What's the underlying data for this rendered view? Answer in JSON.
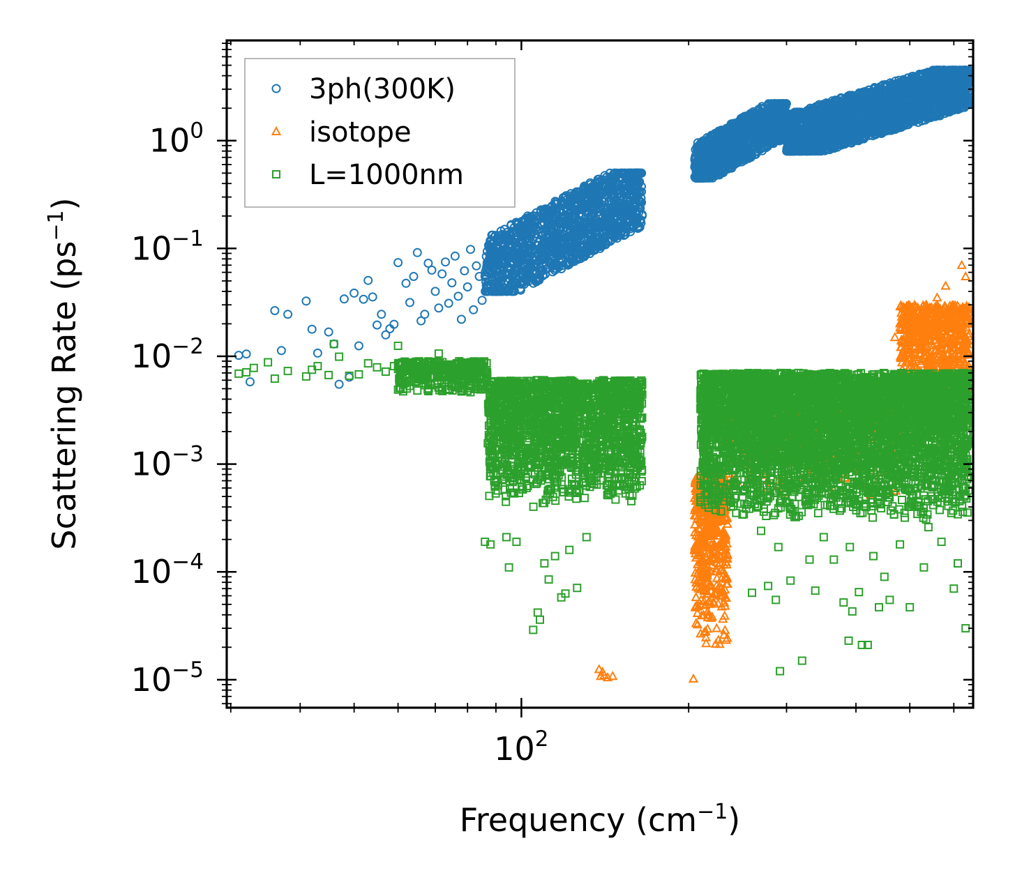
{
  "chart_data": {
    "type": "scatter",
    "title": "",
    "xlabel": {
      "base": "Frequency (cm",
      "sup": "−1",
      "tail": ")"
    },
    "ylabel": {
      "base": "Scattering Rate (ps",
      "sup": "−1",
      "tail": ")"
    },
    "xscale": "log",
    "yscale": "log",
    "xlim": [
      29.5,
      650
    ],
    "ylim": [
      5.5e-06,
      8.5
    ],
    "x_tick_labels": [
      {
        "value": 100,
        "base": "10",
        "exp": "2"
      }
    ],
    "y_tick_labels": [
      {
        "value": 1,
        "base": "10",
        "exp": "0"
      },
      {
        "value": 0.1,
        "base": "10",
        "exp": "−1"
      },
      {
        "value": 0.01,
        "base": "10",
        "exp": "−2"
      },
      {
        "value": 0.001,
        "base": "10",
        "exp": "−3"
      },
      {
        "value": 0.0001,
        "base": "10",
        "exp": "−4"
      },
      {
        "value": 1e-05,
        "base": "10",
        "exp": "−5"
      }
    ],
    "legend_position": "top-left",
    "series": [
      {
        "name": "3ph(300K)",
        "marker": "circle",
        "color": "#1f77b4",
        "bands": [
          {
            "x": [
              86,
              165
            ],
            "y": [
              0.04,
              0.5
            ],
            "n": 1400
          },
          {
            "x": [
              205,
              300
            ],
            "y": [
              0.45,
              2.2
            ],
            "n": 1100
          },
          {
            "x": [
              300,
              640
            ],
            "y": [
              0.8,
              4.5
            ],
            "n": 2200
          }
        ],
        "values": [
          [
            31,
            0.0102
          ],
          [
            32,
            0.0105
          ],
          [
            32.5,
            0.0058
          ],
          [
            36,
            0.0265
          ],
          [
            37,
            0.0113
          ],
          [
            38,
            0.0245
          ],
          [
            41,
            0.0325
          ],
          [
            42,
            0.0178
          ],
          [
            43,
            0.0107
          ],
          [
            45,
            0.0168
          ],
          [
            46,
            0.013
          ],
          [
            47,
            0.0055
          ],
          [
            48,
            0.034
          ],
          [
            49,
            0.0064
          ],
          [
            50,
            0.0385
          ],
          [
            51,
            0.0125
          ],
          [
            52,
            0.0338
          ],
          [
            53,
            0.0505
          ],
          [
            54,
            0.0355
          ],
          [
            55,
            0.0195
          ],
          [
            56,
            0.0245
          ],
          [
            57,
            0.0158
          ],
          [
            58,
            0.018
          ],
          [
            59,
            0.0198
          ],
          [
            60,
            0.074
          ],
          [
            62,
            0.0475
          ],
          [
            63,
            0.0315
          ],
          [
            64,
            0.055
          ],
          [
            65,
            0.0915
          ],
          [
            66,
            0.0213
          ],
          [
            67,
            0.0245
          ],
          [
            68,
            0.073
          ],
          [
            69,
            0.063
          ],
          [
            70,
            0.04
          ],
          [
            71,
            0.028
          ],
          [
            72,
            0.058
          ],
          [
            73,
            0.075
          ],
          [
            74,
            0.031
          ],
          [
            75,
            0.048
          ],
          [
            76,
            0.085
          ],
          [
            77,
            0.036
          ],
          [
            78,
            0.022
          ],
          [
            79,
            0.062
          ],
          [
            80,
            0.044
          ],
          [
            81,
            0.098
          ],
          [
            82,
            0.027
          ],
          [
            83,
            0.069
          ],
          [
            84,
            0.055
          ],
          [
            85,
            0.033
          ]
        ]
      },
      {
        "name": "isotope",
        "marker": "triangle",
        "color": "#ff7f0e",
        "bands": [
          {
            "x": [
              205,
              235
            ],
            "y": [
              2e-05,
              0.0008
            ],
            "n": 500
          },
          {
            "x": [
              235,
              480
            ],
            "y": [
              0.0005,
              0.004
            ],
            "n": 400
          },
          {
            "x": [
              480,
              640
            ],
            "y": [
              0.003,
              0.03
            ],
            "n": 700
          }
        ],
        "values": [
          [
            138,
            1.25e-05
          ],
          [
            139,
            1.08e-05
          ],
          [
            140,
            1.18e-05
          ],
          [
            141,
            1.1e-05
          ],
          [
            143,
            1.05e-05
          ],
          [
            146,
            1.08e-05
          ],
          [
            204,
            1.02e-05
          ],
          [
            470,
            0.015
          ],
          [
            500,
            0.0185
          ],
          [
            530,
            0.025
          ],
          [
            580,
            0.045
          ],
          [
            620,
            0.07
          ],
          [
            630,
            0.055
          ],
          [
            560,
            0.035
          ]
        ]
      },
      {
        "name": "L=1000nm",
        "marker": "square",
        "color": "#2ca02c",
        "bands": [
          {
            "x": [
              60,
              87
            ],
            "y": [
              0.0045,
              0.009
            ],
            "n": 350
          },
          {
            "x": [
              87,
              165
            ],
            "y": [
              0.0004,
              0.006
            ],
            "n": 1800
          },
          {
            "x": [
              210,
              640
            ],
            "y": [
              0.0003,
              0.007
            ],
            "n": 4500
          }
        ],
        "values": [
          [
            31,
            0.0069
          ],
          [
            32,
            0.0071
          ],
          [
            33,
            0.0078
          ],
          [
            35,
            0.0088
          ],
          [
            36,
            0.0062
          ],
          [
            38,
            0.0073
          ],
          [
            41,
            0.0065
          ],
          [
            42,
            0.0075
          ],
          [
            43,
            0.0081
          ],
          [
            45,
            0.0067
          ],
          [
            46,
            0.013
          ],
          [
            47,
            0.0099
          ],
          [
            49,
            0.0066
          ],
          [
            51,
            0.0068
          ],
          [
            53,
            0.0086
          ],
          [
            55,
            0.0079
          ],
          [
            57,
            0.0072
          ],
          [
            59,
            0.0081
          ],
          [
            60,
            0.0125
          ],
          [
            62,
            0.0073
          ],
          [
            65,
            0.0069
          ],
          [
            68,
            0.0088
          ],
          [
            71,
            0.0106
          ],
          [
            75,
            0.0068
          ],
          [
            79,
            0.0071
          ],
          [
            84,
            0.0066
          ],
          [
            86,
            0.00019
          ],
          [
            88,
            0.00018
          ],
          [
            94,
            0.00021
          ],
          [
            95,
            0.00011
          ],
          [
            98,
            0.00019
          ],
          [
            105,
            2.9e-05
          ],
          [
            107,
            4.2e-05
          ],
          [
            108,
            3.6e-05
          ],
          [
            110,
            0.00012
          ],
          [
            112,
            8.5e-05
          ],
          [
            115,
            0.00014
          ],
          [
            118,
            5.8e-05
          ],
          [
            120,
            6.3e-05
          ],
          [
            122,
            0.00016
          ],
          [
            126,
            7.1e-05
          ],
          [
            131,
            0.00021
          ],
          [
            210,
            0.00049
          ],
          [
            260,
            6.4e-05
          ],
          [
            278,
            7.4e-05
          ],
          [
            287,
            5.5e-05
          ],
          [
            292,
            1.2e-05
          ],
          [
            305,
            8.3e-05
          ],
          [
            320,
            1.5e-05
          ],
          [
            338,
            6.7e-05
          ],
          [
            365,
            0.00013
          ],
          [
            380,
            5.2e-05
          ],
          [
            388,
            2.3e-05
          ],
          [
            394,
            4.3e-05
          ],
          [
            405,
            6.5e-05
          ],
          [
            410,
            2.1e-05
          ],
          [
            420,
            2.1e-05
          ],
          [
            440,
            4.7e-05
          ],
          [
            460,
            5.5e-05
          ],
          [
            500,
            4.7e-05
          ],
          [
            530,
            0.00011
          ],
          [
            600,
            7e-05
          ],
          [
            630,
            3e-05
          ],
          [
            610,
            0.00012
          ],
          [
            570,
            0.00019
          ],
          [
            540,
            0.00026
          ],
          [
            480,
            0.00018
          ],
          [
            450,
            9e-05
          ],
          [
            430,
            0.00014
          ],
          [
            390,
            0.00017
          ],
          [
            350,
            0.00021
          ],
          [
            330,
            0.00013
          ],
          [
            290,
            0.00017
          ],
          [
            270,
            0.00024
          ],
          [
            250,
            0.00034
          ],
          [
            230,
            0.0006
          ],
          [
            220,
            0.0008
          ],
          [
            215,
            0.0011
          ]
        ]
      }
    ]
  }
}
